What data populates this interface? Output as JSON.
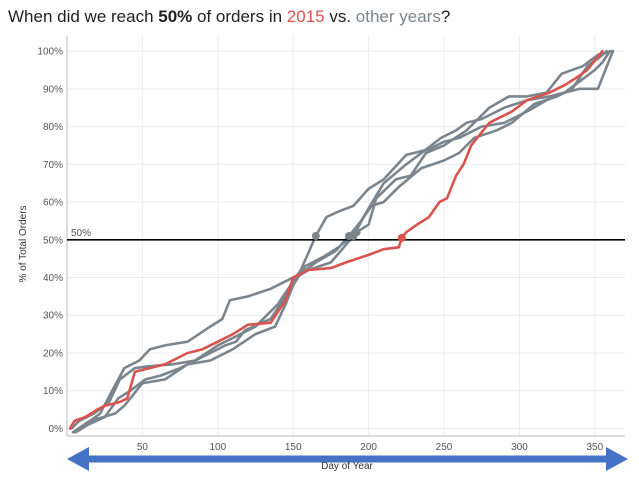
{
  "title": {
    "part1": "When did we reach ",
    "bold": "50%",
    "part2": " of orders in ",
    "highlight": "2015",
    "part3": " vs. ",
    "other": "other years",
    "part4": "?"
  },
  "colors": {
    "highlight": "#d9534f",
    "other": "#7b858e",
    "arrow": "#4472c4",
    "reference": "#000000",
    "grid": "#ececec"
  },
  "chart_data": {
    "type": "line",
    "xlabel": "Day of Year",
    "ylabel": "% of Total Orders",
    "xlim": [
      0,
      370
    ],
    "ylim": [
      -2,
      104
    ],
    "x_ticks": [
      50,
      100,
      150,
      200,
      250,
      300,
      350
    ],
    "y_ticks": [
      0,
      10,
      20,
      30,
      40,
      50,
      60,
      70,
      80,
      90,
      100
    ],
    "y_tick_labels": [
      "0%",
      "10%",
      "20%",
      "30%",
      "40%",
      "50%",
      "60%",
      "70%",
      "80%",
      "90%",
      "100%"
    ],
    "grid": true,
    "reference_line": {
      "value": 50,
      "label": "50%"
    },
    "series": [
      {
        "highlight": true,
        "points": [
          [
            2,
            0
          ],
          [
            5,
            2
          ],
          [
            12,
            3
          ],
          [
            20,
            5
          ],
          [
            25,
            6
          ],
          [
            35,
            7
          ],
          [
            40,
            8
          ],
          [
            45,
            15
          ],
          [
            55,
            16
          ],
          [
            65,
            17
          ],
          [
            80,
            20
          ],
          [
            90,
            21
          ],
          [
            100,
            23
          ],
          [
            110,
            25
          ],
          [
            120,
            27.5
          ],
          [
            135,
            28
          ],
          [
            145,
            34
          ],
          [
            150,
            40
          ],
          [
            160,
            42
          ],
          [
            175,
            42.5
          ],
          [
            185,
            44
          ],
          [
            200,
            46
          ],
          [
            210,
            47.5
          ],
          [
            220,
            48
          ],
          [
            222,
            50.5
          ],
          [
            225,
            52
          ],
          [
            232,
            54
          ],
          [
            240,
            56
          ],
          [
            247,
            60
          ],
          [
            252,
            61
          ],
          [
            258,
            67
          ],
          [
            263,
            70
          ],
          [
            268,
            75
          ],
          [
            272,
            77
          ],
          [
            280,
            81
          ],
          [
            295,
            84
          ],
          [
            305,
            87
          ],
          [
            320,
            89
          ],
          [
            330,
            91
          ],
          [
            338,
            93
          ],
          [
            345,
            95
          ],
          [
            351,
            98
          ],
          [
            355,
            100
          ]
        ]
      },
      {
        "highlight": false,
        "points": [
          [
            3,
            0
          ],
          [
            8,
            2
          ],
          [
            18,
            4
          ],
          [
            28,
            7
          ],
          [
            35,
            13
          ],
          [
            45,
            16
          ],
          [
            55,
            16.5
          ],
          [
            70,
            17
          ],
          [
            85,
            18
          ],
          [
            100,
            22
          ],
          [
            110,
            24
          ],
          [
            125,
            27
          ],
          [
            140,
            33
          ],
          [
            155,
            42
          ],
          [
            165,
            51
          ],
          [
            172,
            56
          ],
          [
            180,
            57.5
          ],
          [
            190,
            59
          ],
          [
            200,
            63.5
          ],
          [
            210,
            66
          ],
          [
            225,
            72.5
          ],
          [
            240,
            74
          ],
          [
            250,
            76
          ],
          [
            260,
            77
          ],
          [
            275,
            80
          ],
          [
            290,
            81
          ],
          [
            305,
            84
          ],
          [
            318,
            87
          ],
          [
            330,
            89
          ],
          [
            340,
            92
          ],
          [
            350,
            95
          ],
          [
            355,
            97
          ],
          [
            360,
            100
          ]
        ]
      },
      {
        "highlight": false,
        "points": [
          [
            5,
            -1
          ],
          [
            12,
            1
          ],
          [
            22,
            4
          ],
          [
            30,
            10
          ],
          [
            38,
            16
          ],
          [
            48,
            18
          ],
          [
            55,
            21
          ],
          [
            65,
            22
          ],
          [
            80,
            23
          ],
          [
            95,
            27
          ],
          [
            103,
            29
          ],
          [
            108,
            34
          ],
          [
            120,
            35
          ],
          [
            135,
            37
          ],
          [
            155,
            41
          ],
          [
            165,
            44
          ],
          [
            178,
            47
          ],
          [
            187,
            51
          ],
          [
            195,
            55
          ],
          [
            202,
            59
          ],
          [
            210,
            60
          ],
          [
            220,
            64
          ],
          [
            235,
            69
          ],
          [
            250,
            71
          ],
          [
            260,
            73
          ],
          [
            270,
            77
          ],
          [
            285,
            79
          ],
          [
            295,
            81
          ],
          [
            310,
            86
          ],
          [
            325,
            88
          ],
          [
            335,
            90
          ],
          [
            345,
            96
          ],
          [
            352,
            98
          ],
          [
            358,
            100
          ]
        ]
      },
      {
        "highlight": false,
        "points": [
          [
            4,
            -1
          ],
          [
            15,
            2
          ],
          [
            24,
            3
          ],
          [
            32,
            4
          ],
          [
            38,
            6
          ],
          [
            50,
            12
          ],
          [
            65,
            13
          ],
          [
            80,
            17
          ],
          [
            95,
            18
          ],
          [
            110,
            21
          ],
          [
            125,
            25
          ],
          [
            138,
            27
          ],
          [
            145,
            33
          ],
          [
            152,
            40
          ],
          [
            160,
            42
          ],
          [
            175,
            44
          ],
          [
            190,
            51
          ],
          [
            198,
            57
          ],
          [
            210,
            65
          ],
          [
            225,
            70
          ],
          [
            235,
            73
          ],
          [
            248,
            77
          ],
          [
            258,
            79
          ],
          [
            265,
            81
          ],
          [
            275,
            82
          ],
          [
            290,
            85
          ],
          [
            305,
            87
          ],
          [
            320,
            88
          ],
          [
            340,
            90
          ],
          [
            352,
            90
          ],
          [
            362,
            100
          ]
        ]
      },
      {
        "highlight": false,
        "points": [
          [
            6,
            -1
          ],
          [
            14,
            1
          ],
          [
            25,
            3
          ],
          [
            34,
            8
          ],
          [
            42,
            10
          ],
          [
            52,
            13
          ],
          [
            62,
            14
          ],
          [
            75,
            16
          ],
          [
            90,
            19
          ],
          [
            105,
            22
          ],
          [
            112,
            23
          ],
          [
            118,
            26
          ],
          [
            135,
            29
          ],
          [
            150,
            38
          ],
          [
            158,
            43
          ],
          [
            170,
            45.5
          ],
          [
            180,
            48
          ],
          [
            192,
            52
          ],
          [
            200,
            54
          ],
          [
            205,
            61
          ],
          [
            218,
            66
          ],
          [
            228,
            67
          ],
          [
            238,
            73
          ],
          [
            250,
            75
          ],
          [
            265,
            79
          ],
          [
            280,
            85
          ],
          [
            293,
            88
          ],
          [
            305,
            88
          ],
          [
            318,
            89
          ],
          [
            328,
            94
          ],
          [
            342,
            96
          ],
          [
            352,
            99
          ],
          [
            362,
            100
          ]
        ]
      }
    ],
    "markers": [
      {
        "x": 222,
        "y": 50.5,
        "highlight": true
      },
      {
        "x": 165,
        "y": 51,
        "highlight": false
      },
      {
        "x": 187,
        "y": 51,
        "highlight": false
      },
      {
        "x": 190,
        "y": 51,
        "highlight": false
      },
      {
        "x": 192,
        "y": 52,
        "highlight": false
      }
    ]
  }
}
